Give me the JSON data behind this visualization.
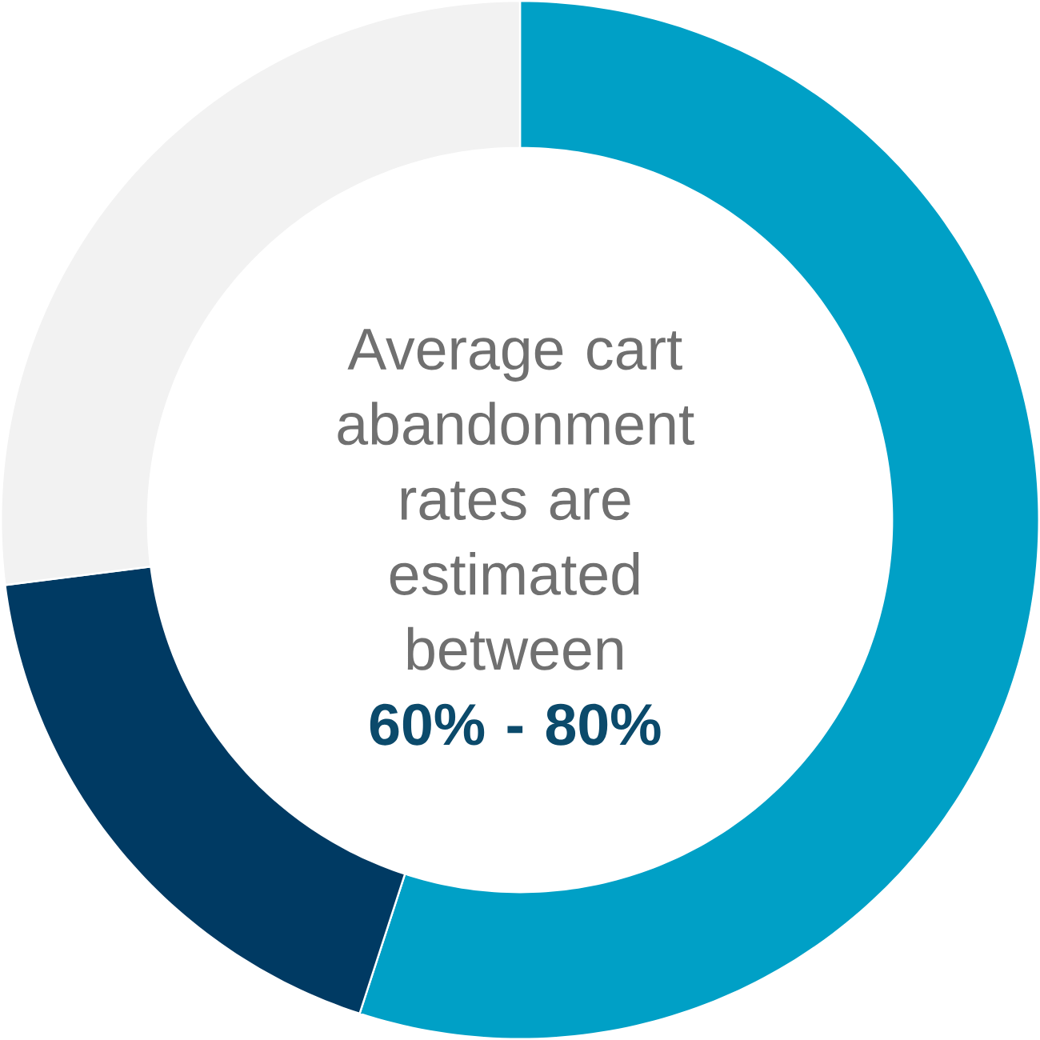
{
  "chart_data": {
    "type": "donut",
    "categories": [
      null,
      null,
      null
    ],
    "values": [
      55,
      18,
      27
    ],
    "colors": [
      "#00a0c6",
      "#003a63",
      "#f2f2f2"
    ],
    "annotations": [
      "Average cart abandonment rates are estimated between",
      "**60% - 80%**"
    ]
  }
}
